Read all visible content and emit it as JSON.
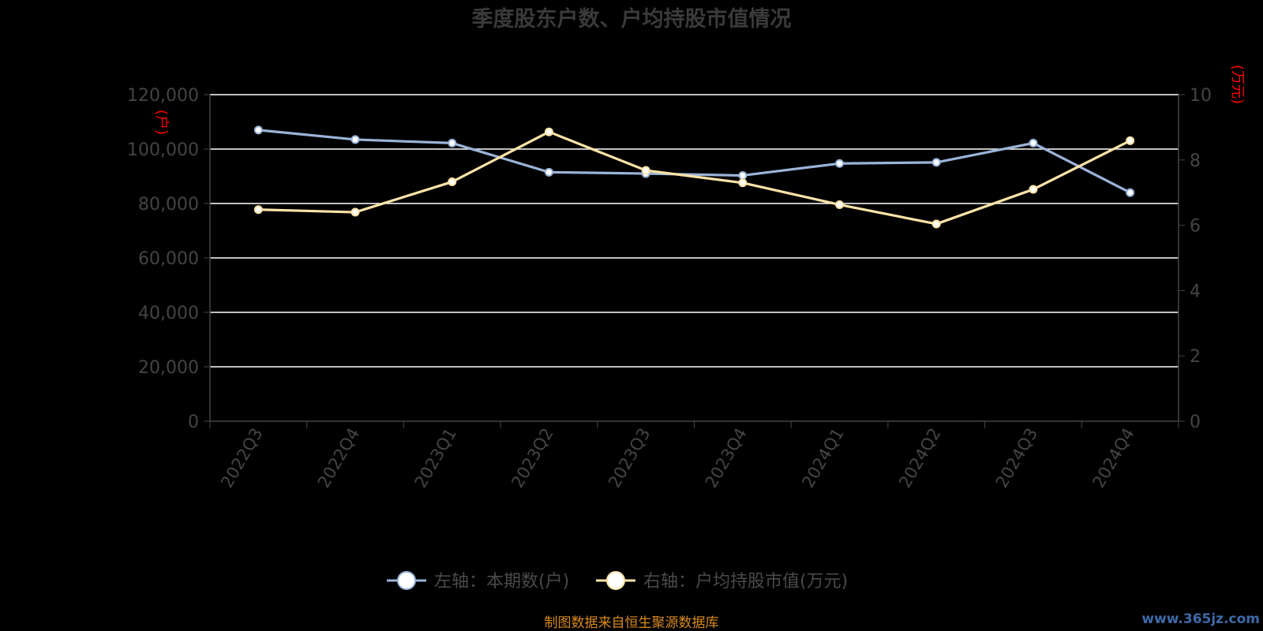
{
  "colors": {
    "background": "#000000",
    "series_left": "#9ab3d8",
    "series_right": "#fde3a7",
    "axis_unit": "#ff0000",
    "footer": "#d88a1c",
    "watermark": "#3d6aa8",
    "gridline": "#ffffff",
    "muted_text": "#444444"
  },
  "chart_data": {
    "type": "line",
    "title": "季度股东户数、户均持股市值情况",
    "categories": [
      "2022Q3",
      "2022Q4",
      "2023Q1",
      "2023Q2",
      "2023Q3",
      "2023Q4",
      "2024Q1",
      "2024Q2",
      "2024Q3",
      "2024Q4"
    ],
    "left_axis": {
      "unit": "(户)",
      "min": 0,
      "max": 120000,
      "ticks": [
        "0",
        "20,000",
        "40,000",
        "60,000",
        "80,000",
        "100,000",
        "120,000"
      ]
    },
    "right_axis": {
      "unit": "(万元)",
      "min": 0,
      "max": 10,
      "ticks": [
        "0",
        "2",
        "4",
        "6",
        "8",
        "10"
      ]
    },
    "series": [
      {
        "name": "左轴：本期数(户)",
        "axis": "left",
        "values": [
          107000,
          103500,
          102200,
          91500,
          91000,
          90300,
          94700,
          95100,
          102200,
          84000
        ]
      },
      {
        "name": "右轴：户均持股市值(万元)",
        "axis": "right",
        "values": [
          6.48,
          6.4,
          7.33,
          8.86,
          7.68,
          7.3,
          6.63,
          6.04,
          7.1,
          8.59
        ]
      }
    ],
    "grid": true,
    "legend_position": "bottom-center"
  },
  "footer": {
    "source": "制图数据来自恒生聚源数据库"
  },
  "watermark": {
    "text": "www.365jz.com"
  }
}
